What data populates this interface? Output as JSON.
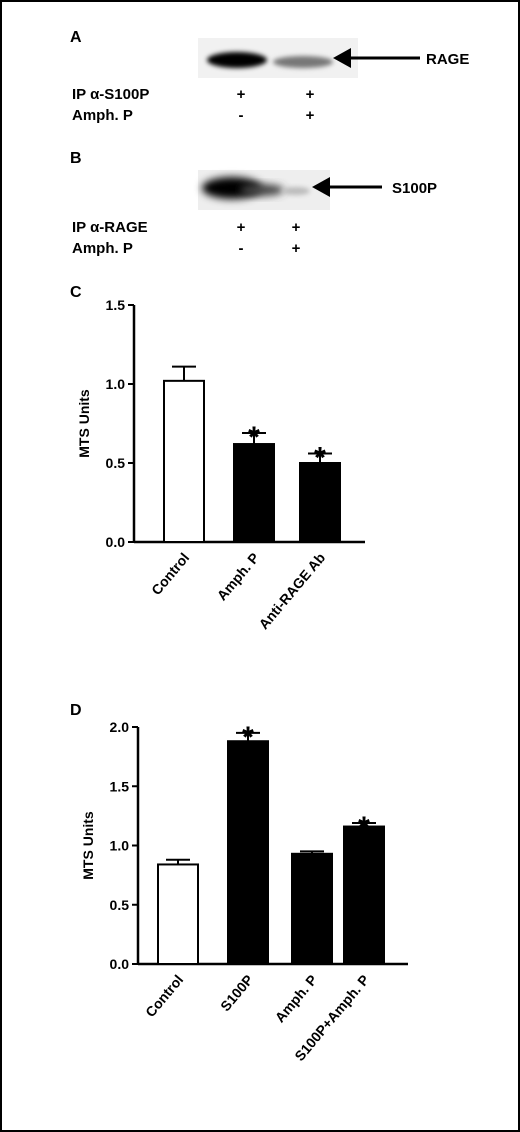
{
  "panel_a": {
    "letter": "A",
    "band_label": "RAGE",
    "rows": [
      {
        "label": "IP α-S100P",
        "lanes": [
          "+",
          "+"
        ]
      },
      {
        "label": "Amph. P",
        "lanes": [
          "-",
          "+"
        ]
      }
    ]
  },
  "panel_b": {
    "letter": "B",
    "band_label": "S100P",
    "rows": [
      {
        "label": "IP α-RAGE",
        "lanes": [
          "+",
          "+"
        ]
      },
      {
        "label": "Amph. P",
        "lanes": [
          "-",
          "+"
        ]
      }
    ]
  },
  "chart_data": [
    {
      "panel": "C",
      "type": "bar",
      "ylabel": "MTS Units",
      "ylim": [
        0,
        1.5
      ],
      "yticks": [
        "0.0",
        "0.5",
        "1.0",
        "1.5"
      ],
      "categories": [
        "Control",
        "Amph. P",
        "Anti-RAGE Ab"
      ],
      "values": [
        1.02,
        0.62,
        0.5
      ],
      "errors": [
        0.09,
        0.07,
        0.06
      ],
      "significant": [
        false,
        true,
        true
      ],
      "fill": [
        "#ffffff",
        "#000000",
        "#000000"
      ],
      "marker": "*"
    },
    {
      "panel": "D",
      "type": "bar",
      "ylabel": "MTS Units",
      "ylim": [
        0,
        2.0
      ],
      "yticks": [
        "0.0",
        "0.5",
        "1.0",
        "1.5",
        "2.0"
      ],
      "categories": [
        "Control",
        "S100P",
        "Amph. P",
        "S100P+Amph. P"
      ],
      "values": [
        0.84,
        1.88,
        0.93,
        1.16
      ],
      "errors": [
        0.04,
        0.07,
        0.02,
        0.03
      ],
      "significant": [
        false,
        true,
        false,
        true
      ],
      "fill": [
        "#ffffff",
        "#000000",
        "#000000",
        "#000000"
      ],
      "marker": "*"
    }
  ]
}
